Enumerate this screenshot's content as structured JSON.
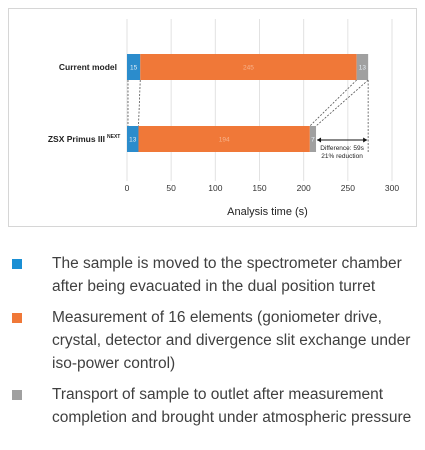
{
  "chart_data": {
    "type": "bar",
    "orientation": "horizontal",
    "stacked": true,
    "categories": [
      "Current model",
      "ZSX Primus III NEXT"
    ],
    "category_labels": [
      {
        "main": "Current model",
        "sup": ""
      },
      {
        "main": "ZSX Primus III",
        "sup": "NEXT"
      }
    ],
    "series": [
      {
        "name": "The sample is moved to the spectrometer chamber after being evacuated in the dual position turret",
        "color": "#2b8ccc",
        "values": [
          15,
          13
        ]
      },
      {
        "name": "Measurement of 16 elements (goniometer drive, crystal, detector and divergence slit exchange under iso-power control)",
        "color": "#f07838",
        "values": [
          245,
          194
        ]
      },
      {
        "name": "Transport of sample to outlet after measurement completion and brought under atmospheric pressure",
        "color": "#a0a0a0",
        "values": [
          13,
          7
        ]
      }
    ],
    "data_labels": [
      [
        "15",
        "245",
        "13"
      ],
      [
        "13",
        "194",
        "7"
      ]
    ],
    "xlabel": "Analysis time (s)",
    "xlim": [
      0,
      300
    ],
    "xticks": [
      0,
      50,
      100,
      150,
      200,
      250,
      300
    ],
    "grid": true,
    "annotation": {
      "line1": "Difference: 59s",
      "line2": "21% reduction"
    }
  },
  "legend": [
    {
      "color": "#1a8fd4",
      "text": "The sample is moved to the spectrometer chamber after being evacuated in the dual position turret"
    },
    {
      "color": "#f07838",
      "text": "Measurement of 16 elements (goniometer drive, crystal, detector and divergence slit exchange under iso-power control)"
    },
    {
      "color": "#a0a0a0",
      "text": "Transport of sample to outlet after measurement completion and brought under atmospheric pressure"
    }
  ]
}
